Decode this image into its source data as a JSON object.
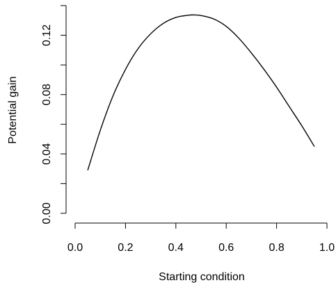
{
  "chart_data": {
    "type": "line",
    "title": "",
    "xlabel": "Starting condition",
    "ylabel": "Potential gain",
    "xlim": [
      0.0,
      1.0
    ],
    "ylim": [
      0.0,
      0.14
    ],
    "x_ticks": [
      0.0,
      0.2,
      0.4,
      0.6,
      0.8,
      1.0
    ],
    "x_tick_labels": [
      "0.0",
      "0.2",
      "0.4",
      "0.6",
      "0.8",
      "1.0"
    ],
    "y_ticks": [
      0.0,
      0.02,
      0.04,
      0.06,
      0.08,
      0.1,
      0.12,
      0.14
    ],
    "y_tick_labels": [
      "0.00",
      "",
      "0.04",
      "",
      "0.08",
      "",
      "0.12",
      ""
    ],
    "grid": false,
    "legend": "none",
    "colors": {
      "line": "#000000",
      "axis": "#000000",
      "background": "#ffffff"
    },
    "series": [
      {
        "x": [
          0.05,
          0.1,
          0.15,
          0.2,
          0.25,
          0.3,
          0.35,
          0.4,
          0.45,
          0.47,
          0.5,
          0.55,
          0.6,
          0.65,
          0.7,
          0.75,
          0.8,
          0.85,
          0.9,
          0.95
        ],
        "values": [
          0.029,
          0.056,
          0.079,
          0.097,
          0.111,
          0.121,
          0.128,
          0.132,
          0.1335,
          0.1337,
          0.1333,
          0.131,
          0.126,
          0.118,
          0.108,
          0.097,
          0.085,
          0.072,
          0.059,
          0.045
        ]
      }
    ]
  }
}
